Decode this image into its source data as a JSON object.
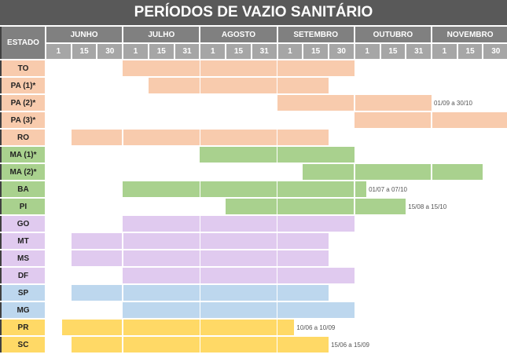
{
  "title": "PERÍODOS DE VAZIO SANITÁRIO",
  "chart_data": {
    "type": "bar",
    "orientation": "horizontal-range",
    "title": "PERÍODOS DE VAZIO SANITÁRIO",
    "row_header": "ESTADO",
    "months": [
      {
        "label": "JUNHO",
        "days": [
          "1",
          "15",
          "30"
        ]
      },
      {
        "label": "JULHO",
        "days": [
          "1",
          "15",
          "31"
        ]
      },
      {
        "label": "AGOSTO",
        "days": [
          "1",
          "15",
          "31"
        ]
      },
      {
        "label": "SETEMBRO",
        "days": [
          "1",
          "15",
          "30"
        ]
      },
      {
        "label": "OUTUBRO",
        "days": [
          "1",
          "15",
          "31"
        ]
      },
      {
        "label": "NOVEMBRO",
        "days": [
          "1",
          "15",
          "30"
        ]
      }
    ],
    "colors": {
      "peach": "#F8CBAD",
      "green": "#A9D18E",
      "lavender": "#E0CAEF",
      "blue": "#BDD7EE",
      "yellow": "#FFD966"
    },
    "rows": [
      {
        "state": "TO",
        "color": "peach",
        "start": "01/07",
        "end": "30/09",
        "label": ""
      },
      {
        "state": "PA (1)*",
        "color": "peach",
        "start": "15/07",
        "end": "15/09",
        "label": ""
      },
      {
        "state": "PA (2)*",
        "color": "peach",
        "start": "01/09",
        "end": "30/10",
        "label": "01/09 a 30/10"
      },
      {
        "state": "PA (3)*",
        "color": "peach",
        "start": "01/10",
        "end": "30/11",
        "label": ""
      },
      {
        "state": "RO",
        "color": "peach",
        "start": "15/06",
        "end": "15/09",
        "label": ""
      },
      {
        "state": "MA (1)*",
        "color": "green",
        "start": "01/08",
        "end": "30/09",
        "label": ""
      },
      {
        "state": "MA (2)*",
        "color": "green",
        "start": "15/09",
        "end": "15/11",
        "label": ""
      },
      {
        "state": "BA",
        "color": "green",
        "start": "01/07",
        "end": "07/10",
        "label": "01/07 a 07/10"
      },
      {
        "state": "PI",
        "color": "green",
        "start": "15/08",
        "end": "15/10",
        "label": "15/08 a 15/10"
      },
      {
        "state": "GO",
        "color": "lavender",
        "start": "01/07",
        "end": "30/09",
        "label": ""
      },
      {
        "state": "MT",
        "color": "lavender",
        "start": "15/06",
        "end": "15/09",
        "label": ""
      },
      {
        "state": "MS",
        "color": "lavender",
        "start": "15/06",
        "end": "15/09",
        "label": ""
      },
      {
        "state": "DF",
        "color": "lavender",
        "start": "01/07",
        "end": "30/09",
        "label": ""
      },
      {
        "state": "SP",
        "color": "blue",
        "start": "15/06",
        "end": "15/09",
        "label": ""
      },
      {
        "state": "MG",
        "color": "blue",
        "start": "01/07",
        "end": "30/09",
        "label": ""
      },
      {
        "state": "PR",
        "color": "yellow",
        "start": "10/06",
        "end": "10/09",
        "label": "10/06 a 10/09"
      },
      {
        "state": "SC",
        "color": "yellow",
        "start": "15/06",
        "end": "15/09",
        "label": "15/06 a 15/09"
      }
    ]
  }
}
